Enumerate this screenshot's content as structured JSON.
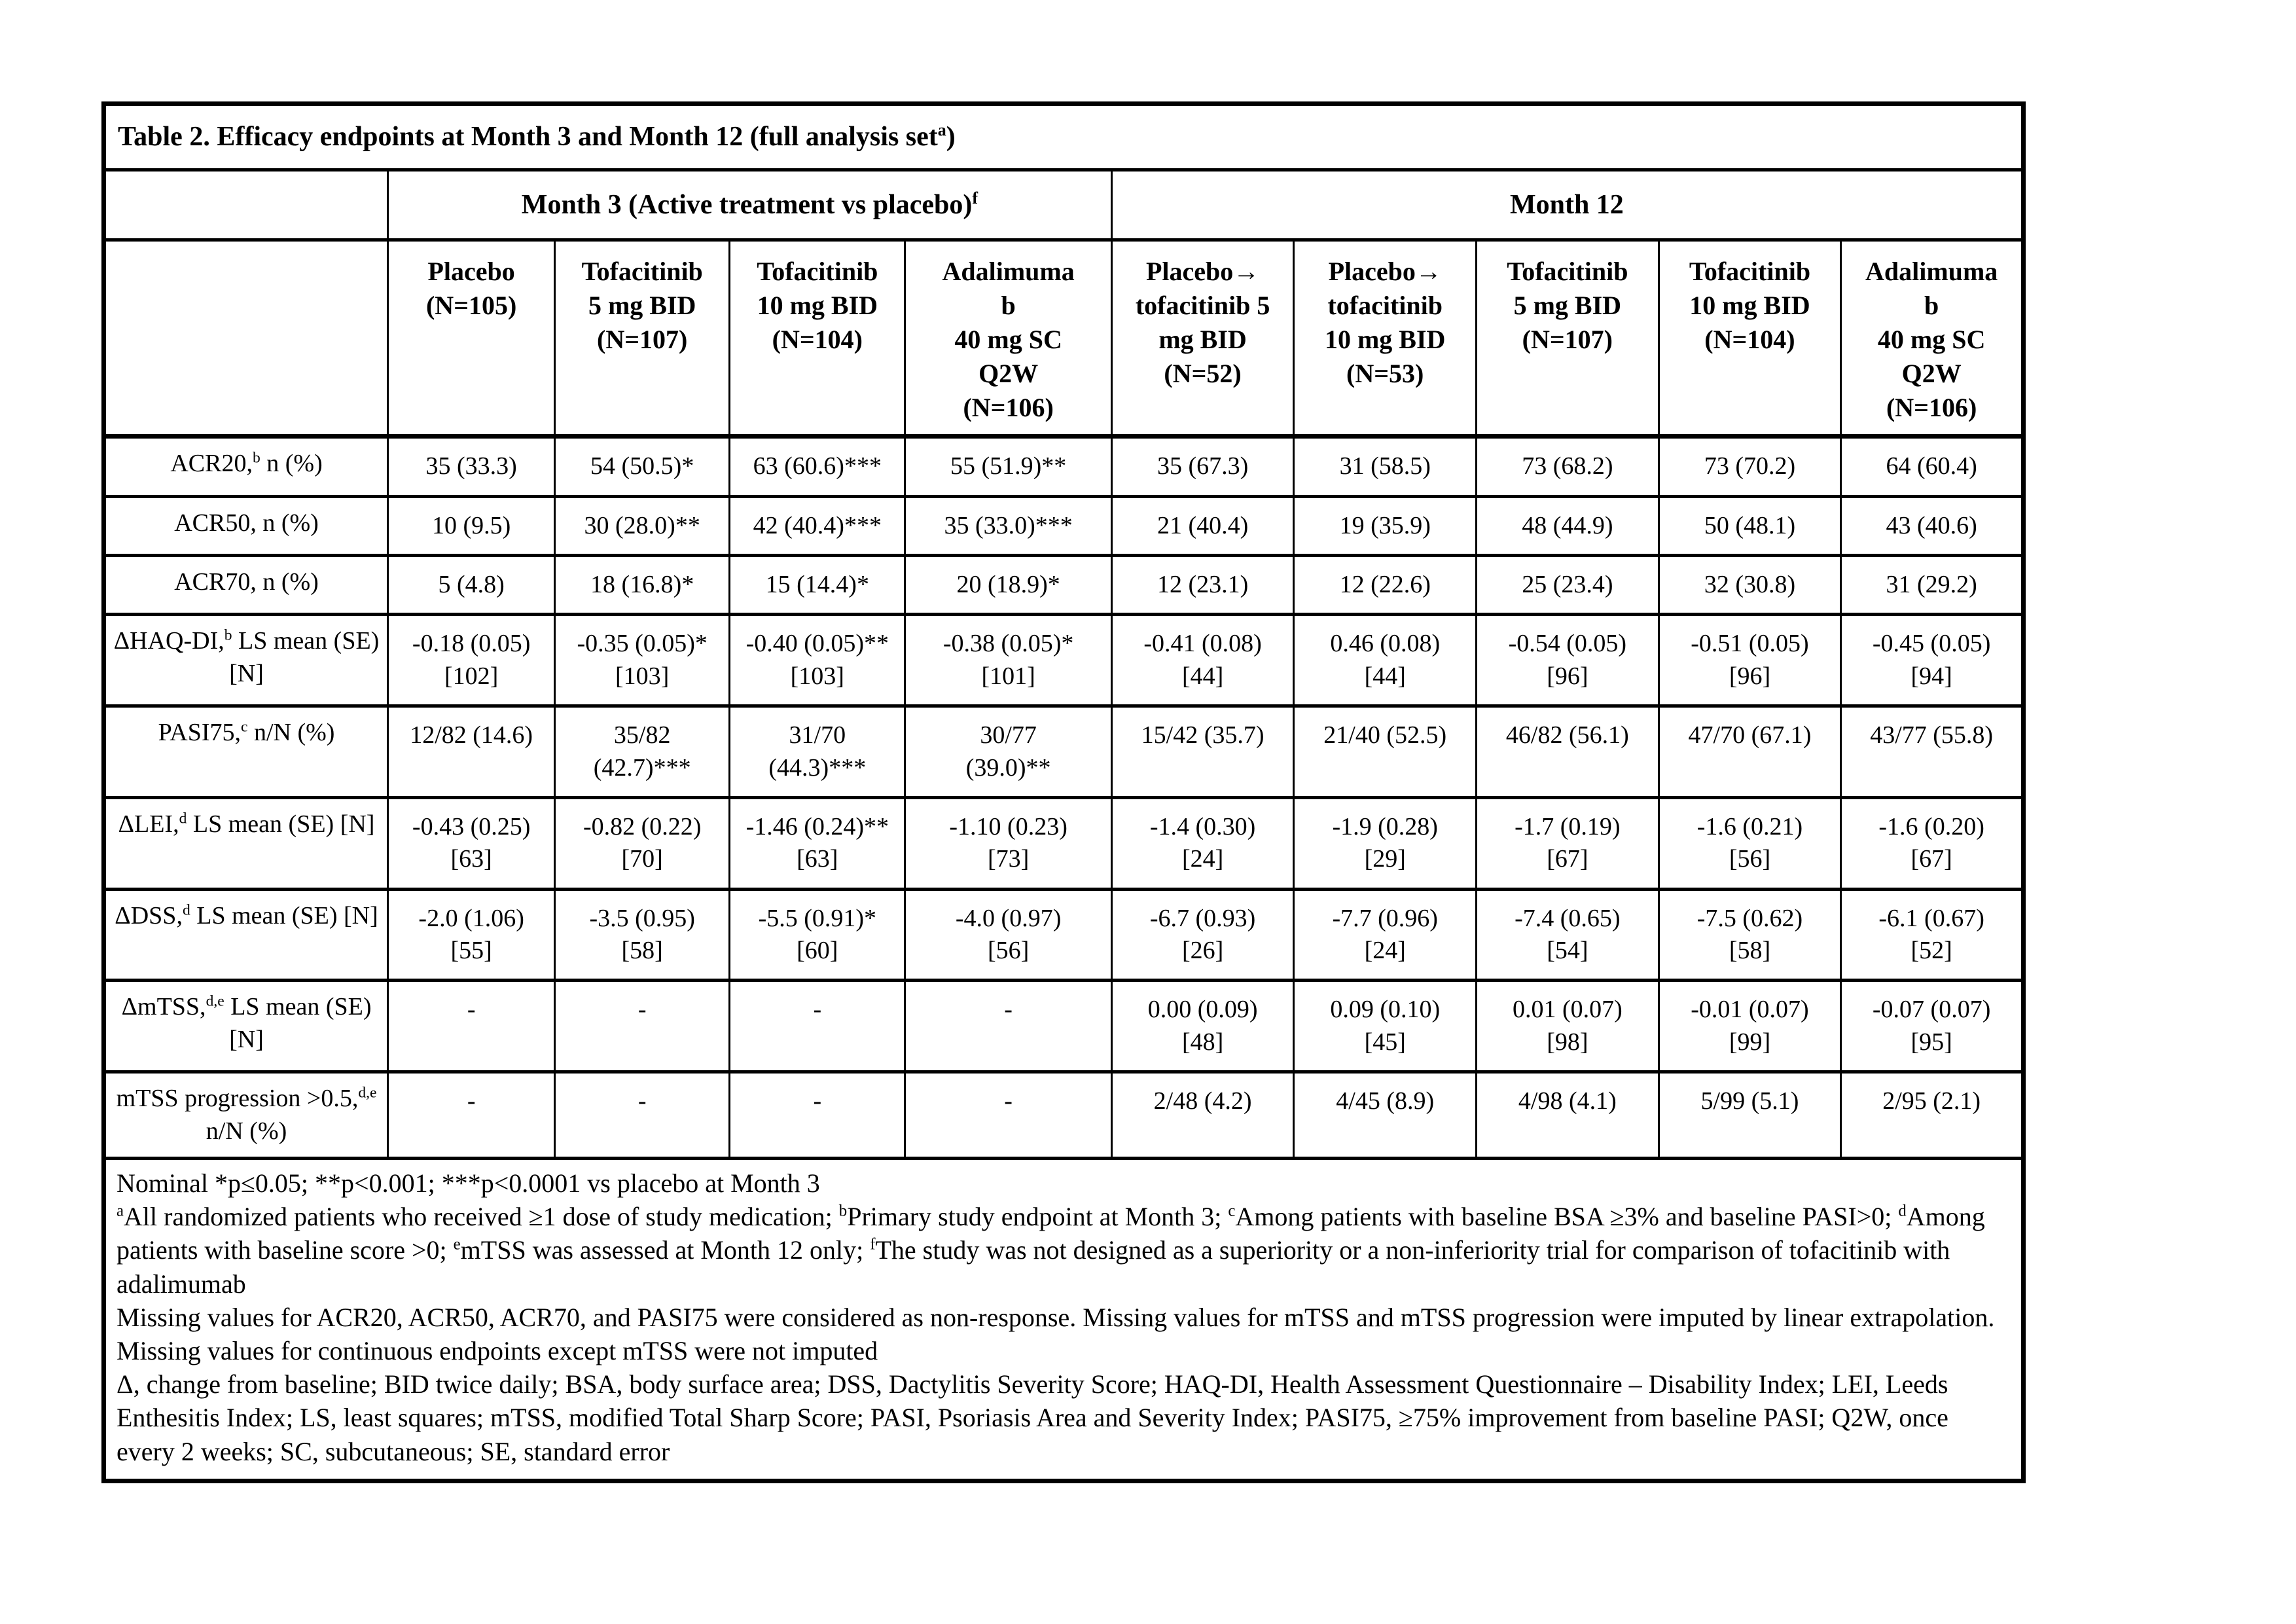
{
  "table": {
    "title": "Table 2. Efficacy endpoints at Month 3 and Month 12 (full analysis set^{a})",
    "group_headers": {
      "month3": "Month 3 (Active treatment vs placebo)^{f}",
      "month12": "Month 12"
    },
    "columns": [
      "Placebo\n(N=105)",
      "Tofacitinib\n5 mg BID\n(N=107)",
      "Tofacitinib\n10 mg BID\n(N=104)",
      "Adalimuma\nb\n40 mg SC\nQ2W\n(N=106)",
      "Placebo→\ntofacitinib 5\nmg BID\n(N=52)",
      "Placebo→\ntofacitinib\n10 mg BID\n(N=53)",
      "Tofacitinib\n5 mg BID\n(N=107)",
      "Tofacitinib\n10 mg BID\n(N=104)",
      "Adalimuma\nb\n40 mg SC\nQ2W\n(N=106)"
    ],
    "rows": [
      {
        "label": "ACR20,^{b} n (%)",
        "cells": [
          "35 (33.3)",
          "54 (50.5)*",
          "63 (60.6)***",
          "55 (51.9)**",
          "35 (67.3)",
          "31 (58.5)",
          "73 (68.2)",
          "73 (70.2)",
          "64 (60.4)"
        ]
      },
      {
        "label": "ACR50, n (%)",
        "cells": [
          "10 (9.5)",
          "30 (28.0)**",
          "42 (40.4)***",
          "35 (33.0)***",
          "21 (40.4)",
          "19 (35.9)",
          "48 (44.9)",
          "50 (48.1)",
          "43 (40.6)"
        ]
      },
      {
        "label": "ACR70, n (%)",
        "cells": [
          "5 (4.8)",
          "18 (16.8)*",
          "15 (14.4)*",
          "20 (18.9)*",
          "12 (23.1)",
          "12 (22.6)",
          "25 (23.4)",
          "32 (30.8)",
          "31 (29.2)"
        ]
      },
      {
        "label": "ΔHAQ-DI,^{b} LS mean (SE) [N]",
        "cells": [
          "-0.18 (0.05)\n[102]",
          "-0.35 (0.05)*\n[103]",
          "-0.40 (0.05)**\n[103]",
          "-0.38 (0.05)*\n[101]",
          "-0.41 (0.08)\n[44]",
          "0.46 (0.08)\n[44]",
          "-0.54 (0.05)\n[96]",
          "-0.51 (0.05)\n[96]",
          "-0.45 (0.05)\n[94]"
        ]
      },
      {
        "label": "PASI75,^{c} n/N (%)",
        "cells": [
          "12/82 (14.6)",
          "35/82\n(42.7)***",
          "31/70\n(44.3)***",
          "30/77\n(39.0)**",
          "15/42 (35.7)",
          "21/40 (52.5)",
          "46/82 (56.1)",
          "47/70 (67.1)",
          "43/77 (55.8)"
        ]
      },
      {
        "label": "ΔLEI,^{d} LS mean (SE) [N]",
        "cells": [
          "-0.43 (0.25)\n[63]",
          "-0.82 (0.22)\n[70]",
          "-1.46 (0.24)**\n[63]",
          "-1.10 (0.23)\n[73]",
          "-1.4 (0.30)\n[24]",
          "-1.9 (0.28)\n[29]",
          "-1.7 (0.19)\n[67]",
          "-1.6 (0.21)\n[56]",
          "-1.6 (0.20)\n[67]"
        ]
      },
      {
        "label": "ΔDSS,^{d} LS mean (SE) [N]",
        "cells": [
          "-2.0 (1.06)\n[55]",
          "-3.5 (0.95)\n[58]",
          "-5.5 (0.91)*\n[60]",
          "-4.0 (0.97)\n[56]",
          "-6.7 (0.93)\n[26]",
          "-7.7 (0.96)\n[24]",
          "-7.4 (0.65)\n[54]",
          "-7.5 (0.62)\n[58]",
          "-6.1 (0.67)\n[52]"
        ]
      },
      {
        "label": "ΔmTSS,^{d,e} LS mean (SE) [N]",
        "cells": [
          "-",
          "-",
          "-",
          "-",
          "0.00 (0.09)\n[48]",
          "0.09 (0.10)\n[45]",
          "0.01 (0.07)\n[98]",
          "-0.01 (0.07)\n[99]",
          "-0.07 (0.07)\n[95]"
        ]
      },
      {
        "label": "mTSS progression >0.5,^{d,e} n/N (%)",
        "cells": [
          "-",
          "-",
          "-",
          "-",
          "2/48 (4.2)",
          "4/45 (8.9)",
          "4/98 (4.1)",
          "5/99 (5.1)",
          "2/95 (2.1)"
        ]
      }
    ],
    "footnotes": [
      "Nominal *p≤0.05; **p<0.001; ***p<0.0001 vs placebo at Month 3",
      "^{a}All randomized patients who received ≥1 dose of study medication; ^{b}Primary study endpoint at Month 3; ^{c}Among patients with baseline BSA ≥3% and baseline PASI>0; ^{d}Among patients with baseline score >0; ^{e}mTSS was assessed at Month 12 only; ^{f}The study was not designed as a superiority or a non-inferiority trial for comparison of tofacitinib with adalimumab",
      "Missing values for ACR20, ACR50, ACR70, and PASI75 were considered as non-response. Missing values for mTSS and mTSS progression were imputed by linear extrapolation. Missing values for continuous endpoints except mTSS were not imputed",
      "Δ, change from baseline; BID twice daily; BSA, body surface area; DSS, Dactylitis Severity Score; HAQ-DI, Health Assessment Questionnaire – Disability Index; LEI, Leeds Enthesitis Index; LS, least squares; mTSS, modified Total Sharp Score; PASI, Psoriasis Area and Severity Index; PASI75, ≥75% improvement from baseline PASI; Q2W, once every 2 weeks; SC, subcutaneous; SE, standard error"
    ]
  }
}
